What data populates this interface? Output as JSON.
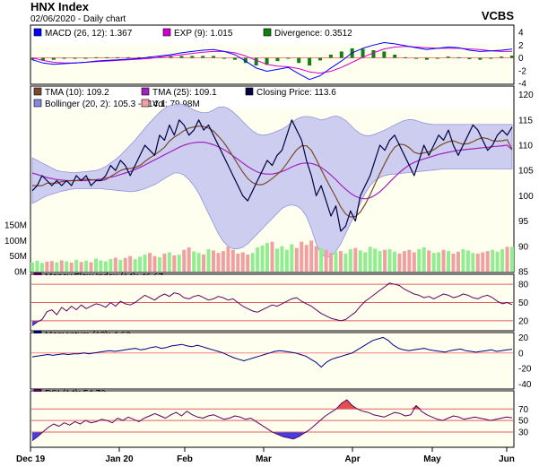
{
  "header": {
    "title": "HNX Index",
    "subtitle": "02/06/2020 - Daily chart",
    "brand": "VCBS"
  },
  "colors": {
    "macd": "#0000ff",
    "macd_signal": "#d000d0",
    "divergence": "#108010",
    "tma10": "#7a4a2a",
    "tma25": "#a020c0",
    "close": "#000040",
    "bollinger_fill": "#c8c8f0",
    "bollinger_line": "#8888dd",
    "vol_up": "#90ee90",
    "vol_down": "#f0a0a0",
    "oscillator": "#600060",
    "overbought": "#e05050",
    "oversold": "#4040e0",
    "momentum": "#000080",
    "panel_bg": "#fffff0"
  },
  "chart_data": [
    {
      "type": "line",
      "panel": "MACD",
      "legend": [
        {
          "label": "MACD (26, 12): 1.367",
          "color": "#0000ff"
        },
        {
          "label": "EXP (9): 1.015",
          "color": "#d000d0"
        },
        {
          "label": "Divergence: 0.3512",
          "color": "#108010"
        }
      ],
      "y_ticks": [
        "4",
        "2",
        "0",
        "-2",
        "-4"
      ],
      "ylim": [
        -4,
        5
      ],
      "series": [
        {
          "values": [
            -0.3,
            -0.8,
            -1.0,
            -0.9,
            -0.8,
            -0.7,
            -0.5,
            -0.4,
            -0.3,
            -0.2,
            -0.1,
            0.1,
            0.3,
            0.5,
            0.8,
            1.0,
            1.2,
            1.3,
            1.0,
            0.5,
            -0.5,
            -1.6,
            -2.1,
            -1.8,
            -1.5,
            -2.5,
            -3.4,
            -2.8,
            -1.6,
            -0.5,
            0.8,
            1.5,
            2.0,
            2.4,
            2.2,
            1.9,
            1.6,
            1.3,
            1.5,
            1.7,
            1.6,
            1.2,
            1.0,
            1.1,
            1.2,
            1.37
          ]
        },
        {
          "values": [
            0.0,
            -0.4,
            -0.7,
            -0.8,
            -0.8,
            -0.7,
            -0.6,
            -0.5,
            -0.4,
            -0.3,
            -0.2,
            -0.1,
            0.1,
            0.3,
            0.5,
            0.7,
            0.9,
            1.0,
            1.0,
            0.8,
            0.3,
            -0.4,
            -1.0,
            -1.3,
            -1.4,
            -1.7,
            -2.2,
            -2.4,
            -2.1,
            -1.5,
            -0.7,
            0.1,
            0.8,
            1.4,
            1.7,
            1.8,
            1.7,
            1.6,
            1.5,
            1.5,
            1.5,
            1.4,
            1.3,
            1.1,
            1.0,
            1.015
          ]
        }
      ]
    },
    {
      "type": "line",
      "panel": "Price",
      "legend": [
        {
          "label": "TMA (10): 109.2",
          "color": "#7a4a2a"
        },
        {
          "label": "TMA (25): 109.1",
          "color": "#a020c0"
        },
        {
          "label": "Closing Price: 113.6",
          "color": "#000040"
        },
        {
          "label": "Bollinger (20, 2): 105.3 - 114.1",
          "color": "#8888dd"
        },
        {
          "label": "Vol: 79.98M",
          "color": "#f0a0a0"
        }
      ],
      "y_ticks": [
        "120",
        "115",
        "110",
        "105",
        "100",
        "95",
        "90",
        "85"
      ],
      "ylim": [
        85,
        121
      ],
      "vol_ticks": [
        "150M",
        "100M",
        "50M",
        "0M"
      ],
      "x_ticks": [
        "Dec 19",
        "Jan 20",
        "Feb",
        "Mar",
        "Apr",
        "May",
        "Jun"
      ],
      "close": [
        101,
        102,
        104,
        103,
        102,
        103,
        102,
        103,
        102,
        104,
        103,
        104,
        102,
        103,
        103,
        104,
        106,
        105,
        107,
        106,
        104,
        106,
        108,
        110,
        109,
        108,
        112,
        111,
        114,
        112,
        115,
        114,
        112,
        113,
        115,
        113,
        114,
        112,
        110,
        108,
        106,
        104,
        102,
        100,
        99,
        101,
        103,
        105,
        107,
        106,
        108,
        109,
        112,
        115,
        113,
        111,
        107,
        104,
        100,
        102,
        99,
        96,
        98,
        93,
        94,
        97,
        95,
        100,
        102,
        104,
        107,
        110,
        109,
        111,
        112,
        110,
        108,
        106,
        104,
        107,
        110,
        108,
        110,
        112,
        111,
        113,
        110,
        108,
        110,
        112,
        114,
        113,
        111,
        109,
        110,
        112,
        113,
        112,
        113.6
      ],
      "tma10": [
        102,
        102,
        102,
        102.5,
        102.5,
        102.5,
        102.8,
        102.9,
        103,
        103,
        103.2,
        103.3,
        103.2,
        103.1,
        103,
        103.2,
        103.8,
        104.4,
        105,
        105.3,
        105.4,
        105.6,
        106,
        106.8,
        107.5,
        108.1,
        108.8,
        109.6,
        110.8,
        111.6,
        112.2,
        112.9,
        113.4,
        113.6,
        113.8,
        113.7,
        113.4,
        112.8,
        111.8,
        110.7,
        109.3,
        107.8,
        106.2,
        104.7,
        103.4,
        102.6,
        102.2,
        102.2,
        102.7,
        103.4,
        104.2,
        105.1,
        106.4,
        107.8,
        109.1,
        109.9,
        109.9,
        109,
        107.2,
        105.2,
        103.3,
        101.5,
        99.7,
        97.8,
        96.4,
        95.8,
        95.9,
        96.8,
        98.3,
        100.2,
        102.3,
        104.4,
        106.4,
        108.2,
        109.6,
        110.2,
        110.1,
        109.5,
        108.6,
        108.3,
        108.5,
        108.7,
        109.1,
        109.8,
        110.3,
        110.7,
        110.9,
        110.5,
        110.2,
        110.3,
        110.7,
        111.2,
        111.5,
        111.3,
        110.9,
        110.8,
        110.9,
        111.1,
        109.2
      ],
      "tma25": [
        104.5,
        104.2,
        103.9,
        103.6,
        103.4,
        103.2,
        103.1,
        103,
        103,
        103,
        103,
        103,
        103.1,
        103.2,
        103.3,
        103.5,
        103.7,
        103.9,
        104.2,
        104.5,
        104.8,
        105.2,
        105.6,
        106.1,
        106.6,
        107.1,
        107.6,
        108.1,
        108.6,
        109.1,
        109.6,
        110,
        110.3,
        110.5,
        110.6,
        110.6,
        110.4,
        110.1,
        109.7,
        109.2,
        108.6,
        107.9,
        107.2,
        106.5,
        105.8,
        105.2,
        104.7,
        104.4,
        104.3,
        104.3,
        104.5,
        104.8,
        105.2,
        105.7,
        106.1,
        106.4,
        106.5,
        106.4,
        106.1,
        105.6,
        104.9,
        104.1,
        103.2,
        102.2,
        101.3,
        100.5,
        99.9,
        99.5,
        99.4,
        99.6,
        100.1,
        100.8,
        101.7,
        102.7,
        103.7,
        104.6,
        105.4,
        106.1,
        106.6,
        107,
        107.3,
        107.6,
        107.9,
        108.2,
        108.4,
        108.6,
        108.8,
        109,
        109.1,
        109.2,
        109.3,
        109.4,
        109.5,
        109.6,
        109.7,
        109.8,
        109.9,
        110,
        109.1
      ],
      "boll_upper": [
        107.5,
        107,
        106.5,
        106,
        105.5,
        105,
        104.8,
        104.7,
        104.6,
        104.6,
        104.7,
        104.8,
        104.9,
        105,
        105.3,
        105.8,
        106.5,
        107.2,
        108,
        109,
        110,
        111,
        112.2,
        113.4,
        114.5,
        115.5,
        116.5,
        117.3,
        117.8,
        118,
        118.2,
        118,
        117.5,
        117,
        116.6,
        116.4,
        116.5,
        117,
        117.5,
        117.6,
        117.3,
        116.6,
        115.7,
        114.7,
        113.7,
        112.8,
        112.2,
        112,
        112.1,
        112.4,
        112.8,
        113.2,
        113.8,
        114.5,
        115.2,
        115.6,
        115.7,
        115.6,
        115.3,
        115,
        115.2,
        115.6,
        115.8,
        115.5,
        114.9,
        114,
        113,
        112.3,
        111.9,
        111.9,
        112.2,
        112.6,
        113,
        113.5,
        114,
        114.5,
        114.9,
        115.1,
        115,
        114.7,
        114.4,
        114.2,
        114.1,
        114.1,
        114.1,
        114.1,
        114.1,
        114.1,
        114.1,
        114.1,
        114.1,
        114.1,
        114.1,
        114.1,
        114.1,
        114.1,
        114.1,
        114.1,
        114.1
      ],
      "boll_lower": [
        98.5,
        99,
        99.5,
        100,
        100.3,
        100.6,
        100.9,
        101.1,
        101.3,
        101.4,
        101.4,
        101.4,
        101.4,
        101.4,
        101.4,
        101.3,
        101.2,
        101.1,
        101,
        100.9,
        100.8,
        100.9,
        101.1,
        101.4,
        101.8,
        102.2,
        102.8,
        103.4,
        104,
        104.5,
        104.5,
        104.1,
        103.2,
        102,
        100.5,
        98.5,
        96.5,
        94.5,
        92.5,
        91,
        90,
        89.5,
        89.5,
        89.8,
        90.5,
        91.5,
        92.5,
        93.5,
        94.5,
        95.5,
        96.5,
        97.5,
        98,
        98.2,
        98,
        97.3,
        95.9,
        93.5,
        90.5,
        88.5,
        87.8,
        88,
        89,
        90.5,
        92.5,
        94.5,
        96.5,
        98.5,
        100.5,
        102,
        103,
        103.6,
        104,
        104.2,
        104.3,
        104.4,
        104.5,
        104.6,
        104.7,
        104.8,
        104.9,
        105,
        105.1,
        105.2,
        105.3,
        105.3,
        105.3,
        105.3,
        105.3,
        105.3,
        105.3,
        105.3,
        105.3,
        105.3,
        105.3,
        105.3,
        105.3,
        105.3,
        105.3
      ],
      "volume": [
        30,
        35,
        28,
        32,
        34,
        30,
        36,
        33,
        29,
        38,
        31,
        35,
        30,
        42,
        36,
        33,
        40,
        45,
        38,
        44,
        50,
        40,
        48,
        55,
        60,
        50,
        46,
        58,
        62,
        52,
        54,
        70,
        78,
        65,
        60,
        55,
        72,
        68,
        60,
        66,
        80,
        70,
        58,
        62,
        55,
        60,
        78,
        84,
        92,
        96,
        74,
        82,
        70,
        88,
        76,
        96,
        86,
        100,
        82,
        76,
        70,
        60,
        64,
        66,
        58,
        72,
        76,
        68,
        62,
        80,
        74,
        66,
        70,
        72,
        64,
        58,
        66,
        70,
        62,
        72,
        78,
        68,
        60,
        62,
        70,
        66,
        58,
        64,
        72,
        68,
        60,
        58,
        62,
        66,
        70,
        64,
        72,
        80,
        79.98
      ]
    },
    {
      "type": "line",
      "panel": "Money Flow Index",
      "legend": [
        {
          "label": "Money Flow Index (14): 46.67",
          "color": "#600060"
        }
      ],
      "y_ticks": [
        "80",
        "50",
        "20"
      ],
      "ylim": [
        5,
        95
      ],
      "values": [
        12,
        18,
        22,
        35,
        38,
        30,
        42,
        36,
        44,
        38,
        46,
        40,
        44,
        48,
        46,
        42,
        50,
        44,
        52,
        48,
        46,
        50,
        56,
        62,
        58,
        54,
        60,
        64,
        60,
        66,
        64,
        58,
        56,
        60,
        62,
        58,
        54,
        56,
        60,
        58,
        54,
        56,
        50,
        44,
        40,
        36,
        34,
        38,
        42,
        46,
        44,
        48,
        52,
        56,
        58,
        52,
        48,
        44,
        38,
        32,
        28,
        24,
        22,
        20,
        22,
        28,
        34,
        44,
        52,
        58,
        64,
        70,
        76,
        82,
        80,
        78,
        72,
        68,
        64,
        62,
        58,
        60,
        56,
        60,
        64,
        62,
        58,
        60,
        64,
        62,
        58,
        56,
        60,
        62,
        58,
        52,
        48,
        50,
        46.67
      ]
    },
    {
      "type": "line",
      "panel": "Momentum",
      "legend": [
        {
          "label": "Momentum (12): 4.62",
          "color": "#000080"
        }
      ],
      "y_ticks": [
        "20",
        "0",
        "-20",
        "-40"
      ],
      "ylim": [
        -45,
        25
      ],
      "values": [
        -5,
        -4,
        -3,
        -2,
        -3,
        -2,
        -1,
        -2,
        -1,
        -1,
        0,
        -1,
        0,
        1,
        2,
        3,
        2,
        3,
        4,
        5,
        6,
        4,
        5,
        7,
        8,
        6,
        7,
        9,
        10,
        11,
        9,
        8,
        10,
        8,
        6,
        4,
        2,
        0,
        -3,
        -6,
        -8,
        -10,
        -8,
        -6,
        -4,
        -2,
        0,
        2,
        3,
        2,
        1,
        0,
        -2,
        -4,
        -8,
        -12,
        -18,
        -12,
        -8,
        -6,
        -4,
        -2,
        0,
        4,
        8,
        12,
        16,
        18,
        20,
        16,
        10,
        6,
        4,
        3,
        4,
        5,
        6,
        4,
        3,
        2,
        1,
        3,
        4,
        5,
        3,
        2,
        1,
        2,
        3,
        4,
        2,
        3,
        4,
        4.62
      ]
    },
    {
      "type": "line",
      "panel": "RSI",
      "legend": [
        {
          "label": "RSI (14): 54.73",
          "color": "#600060"
        }
      ],
      "y_ticks": [
        "70",
        "50",
        "30"
      ],
      "ylim": [
        5,
        100
      ],
      "values": [
        15,
        22,
        30,
        38,
        44,
        40,
        46,
        42,
        48,
        44,
        50,
        46,
        48,
        52,
        50,
        46,
        54,
        50,
        56,
        52,
        48,
        54,
        58,
        62,
        58,
        54,
        60,
        64,
        58,
        66,
        60,
        56,
        54,
        58,
        60,
        56,
        52,
        54,
        58,
        56,
        52,
        54,
        48,
        42,
        36,
        30,
        26,
        22,
        20,
        18,
        22,
        28,
        34,
        42,
        50,
        58,
        64,
        70,
        80,
        86,
        76,
        70,
        66,
        64,
        60,
        58,
        56,
        60,
        64,
        62,
        58,
        60,
        76,
        66,
        60,
        56,
        52,
        50,
        54,
        58,
        56,
        52,
        54,
        56,
        54,
        52,
        50,
        52,
        54,
        56,
        54.73
      ]
    }
  ]
}
